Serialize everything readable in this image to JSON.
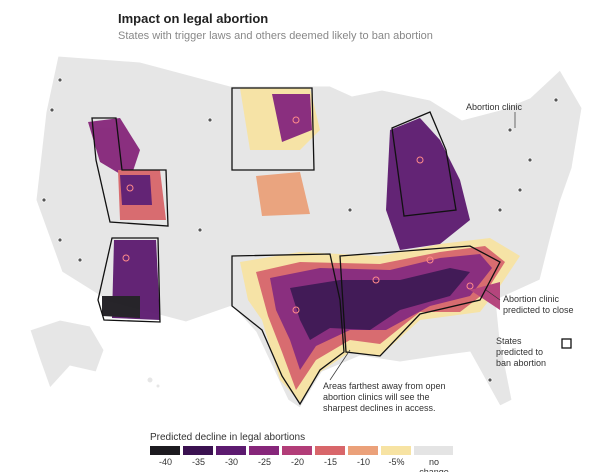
{
  "header": {
    "title": "Impact on legal abortion",
    "subtitle": "States with trigger laws and others deemed likely to ban abortion"
  },
  "annotations": {
    "clinic": "Abortion clinic",
    "closing": "Abortion clinic predicted to close",
    "states": "States predicted to ban abortion",
    "areas": "Areas farthest away from open abortion clinics will see the sharpest declines in access."
  },
  "legend": {
    "title": "Predicted decline in legal abortions",
    "items": [
      {
        "label": "-40",
        "color": "#1c1a1f"
      },
      {
        "label": "-35",
        "color": "#3a1150"
      },
      {
        "label": "-30",
        "color": "#5c1a6f"
      },
      {
        "label": "-25",
        "color": "#86267a"
      },
      {
        "label": "-20",
        "color": "#b23d78"
      },
      {
        "label": "-15",
        "color": "#d8666a"
      },
      {
        "label": "-10",
        "color": "#eba17a"
      },
      {
        "label": "-5%",
        "color": "#f7e3a3"
      },
      {
        "label": "no change",
        "color": "#e4e4e4"
      }
    ]
  }
}
